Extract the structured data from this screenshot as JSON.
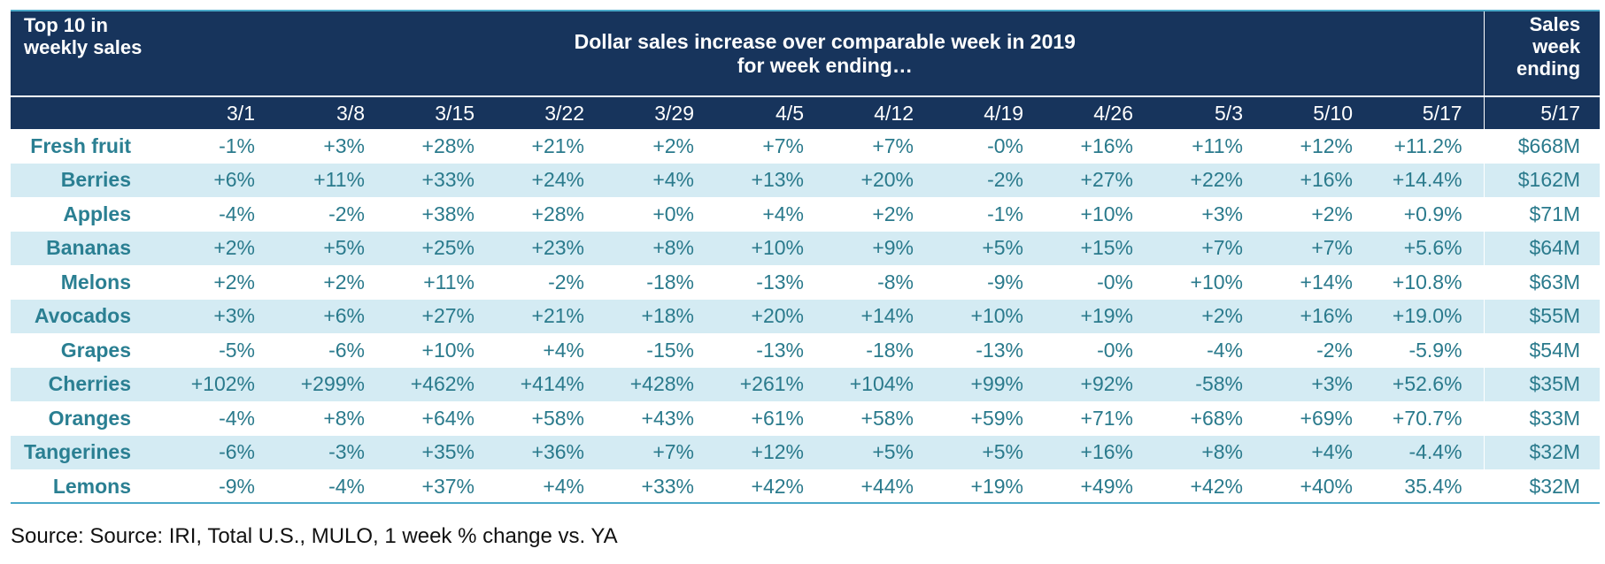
{
  "header": {
    "corner": "Top 10 in weekly sales",
    "title_line1": "Dollar sales increase over comparable week in 2019",
    "title_line2": "for week ending…",
    "sales_header": "Sales week ending",
    "sales_week": "5/17"
  },
  "colors": {
    "header_bg": "#17345c",
    "row_alt_bg": "#d4ebf3",
    "value_text": "#2a7a8c",
    "rule": "#4aa8c8"
  },
  "chart_data": {
    "type": "table",
    "title": "Dollar sales increase over comparable week in 2019 for week ending…",
    "columns": [
      "3/1",
      "3/8",
      "3/15",
      "3/22",
      "3/29",
      "4/5",
      "4/12",
      "4/19",
      "4/26",
      "5/3",
      "5/10",
      "5/17"
    ],
    "rows": [
      {
        "label": "Fresh fruit",
        "values": [
          "-1%",
          "+3%",
          "+28%",
          "+21%",
          "+2%",
          "+7%",
          "+7%",
          "-0%",
          "+16%",
          "+11%",
          "+12%",
          "+11.2%"
        ],
        "sales": "$668M"
      },
      {
        "label": "Berries",
        "values": [
          "+6%",
          "+11%",
          "+33%",
          "+24%",
          "+4%",
          "+13%",
          "+20%",
          "-2%",
          "+27%",
          "+22%",
          "+16%",
          "+14.4%"
        ],
        "sales": "$162M"
      },
      {
        "label": "Apples",
        "values": [
          "-4%",
          "-2%",
          "+38%",
          "+28%",
          "+0%",
          "+4%",
          "+2%",
          "-1%",
          "+10%",
          "+3%",
          "+2%",
          "+0.9%"
        ],
        "sales": "$71M"
      },
      {
        "label": "Bananas",
        "values": [
          "+2%",
          "+5%",
          "+25%",
          "+23%",
          "+8%",
          "+10%",
          "+9%",
          "+5%",
          "+15%",
          "+7%",
          "+7%",
          "+5.6%"
        ],
        "sales": "$64M"
      },
      {
        "label": "Melons",
        "values": [
          "+2%",
          "+2%",
          "+11%",
          "-2%",
          "-18%",
          "-13%",
          "-8%",
          "-9%",
          "-0%",
          "+10%",
          "+14%",
          "+10.8%"
        ],
        "sales": "$63M"
      },
      {
        "label": "Avocados",
        "values": [
          "+3%",
          "+6%",
          "+27%",
          "+21%",
          "+18%",
          "+20%",
          "+14%",
          "+10%",
          "+19%",
          "+2%",
          "+16%",
          "+19.0%"
        ],
        "sales": "$55M"
      },
      {
        "label": "Grapes",
        "values": [
          "-5%",
          "-6%",
          "+10%",
          "+4%",
          "-15%",
          "-13%",
          "-18%",
          "-13%",
          "-0%",
          "-4%",
          "-2%",
          "-5.9%"
        ],
        "sales": "$54M"
      },
      {
        "label": "Cherries",
        "values": [
          "+102%",
          "+299%",
          "+462%",
          "+414%",
          "+428%",
          "+261%",
          "+104%",
          "+99%",
          "+92%",
          "-58%",
          "+3%",
          "+52.6%"
        ],
        "sales": "$35M"
      },
      {
        "label": "Oranges",
        "values": [
          "-4%",
          "+8%",
          "+64%",
          "+58%",
          "+43%",
          "+61%",
          "+58%",
          "+59%",
          "+71%",
          "+68%",
          "+69%",
          "+70.7%"
        ],
        "sales": "$33M"
      },
      {
        "label": "Tangerines",
        "values": [
          "-6%",
          "-3%",
          "+35%",
          "+36%",
          "+7%",
          "+12%",
          "+5%",
          "+5%",
          "+16%",
          "+8%",
          "+4%",
          "-4.4%"
        ],
        "sales": "$32M"
      },
      {
        "label": "Lemons",
        "values": [
          "-9%",
          "-4%",
          "+37%",
          "+4%",
          "+33%",
          "+42%",
          "+44%",
          "+19%",
          "+49%",
          "+42%",
          "+40%",
          "35.4%"
        ],
        "sales": "$32M"
      }
    ]
  },
  "footer": {
    "source": "Source: Source: IRI, Total U.S., MULO, 1 week % change vs. YA"
  }
}
